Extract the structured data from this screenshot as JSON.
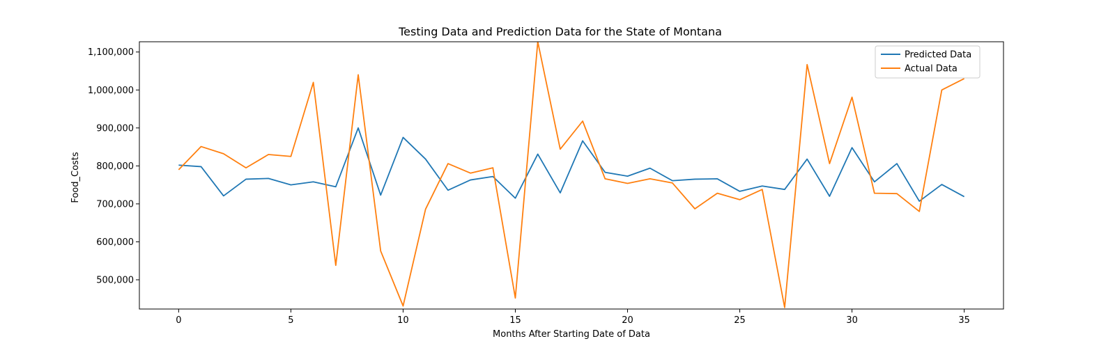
{
  "chart_data": {
    "type": "line",
    "title": "Testing Data and Prediction Data for the State of Montana",
    "xlabel": "Months After Starting Date of Data",
    "ylabel": "Food_Costs",
    "xlim": [
      -1.75,
      36.75
    ],
    "ylim": [
      423000,
      1127000
    ],
    "xticks": [
      0,
      5,
      10,
      15,
      20,
      25,
      30,
      35
    ],
    "xtick_labels": [
      "0",
      "5",
      "10",
      "15",
      "20",
      "25",
      "30",
      "35"
    ],
    "yticks": [
      500000,
      600000,
      700000,
      800000,
      900000,
      1000000,
      1100000
    ],
    "ytick_labels": [
      "500,000",
      "600,000",
      "700,000",
      "800,000",
      "900,000",
      "1,000,000",
      "1,100,000"
    ],
    "grid": false,
    "legend_position": "top-right",
    "x": [
      0,
      1,
      2,
      3,
      4,
      5,
      6,
      7,
      8,
      9,
      10,
      11,
      12,
      13,
      14,
      15,
      16,
      17,
      18,
      19,
      20,
      21,
      22,
      23,
      24,
      25,
      26,
      27,
      28,
      29,
      30,
      31,
      32,
      33,
      34,
      35
    ],
    "series": [
      {
        "name": "Predicted Data",
        "color": "#1f77b4",
        "values": [
          802000,
          798000,
          721000,
          765000,
          767000,
          750000,
          758000,
          745000,
          900000,
          723000,
          875000,
          818000,
          736000,
          763000,
          772000,
          715000,
          831000,
          729000,
          866000,
          783000,
          773000,
          794000,
          761000,
          765000,
          766000,
          733000,
          747000,
          738000,
          818000,
          720000,
          848000,
          758000,
          806000,
          707000,
          751000,
          719000
        ]
      },
      {
        "name": "Actual Data",
        "color": "#ff7f0e",
        "values": [
          790000,
          851000,
          832000,
          795000,
          830000,
          825000,
          1020000,
          538000,
          1040000,
          576000,
          431000,
          686000,
          806000,
          781000,
          795000,
          452000,
          1127000,
          844000,
          918000,
          766000,
          754000,
          766000,
          755000,
          687000,
          728000,
          711000,
          738000,
          427000,
          1067000,
          806000,
          981000,
          728000,
          727000,
          680000,
          1000000,
          1030000
        ]
      }
    ]
  }
}
